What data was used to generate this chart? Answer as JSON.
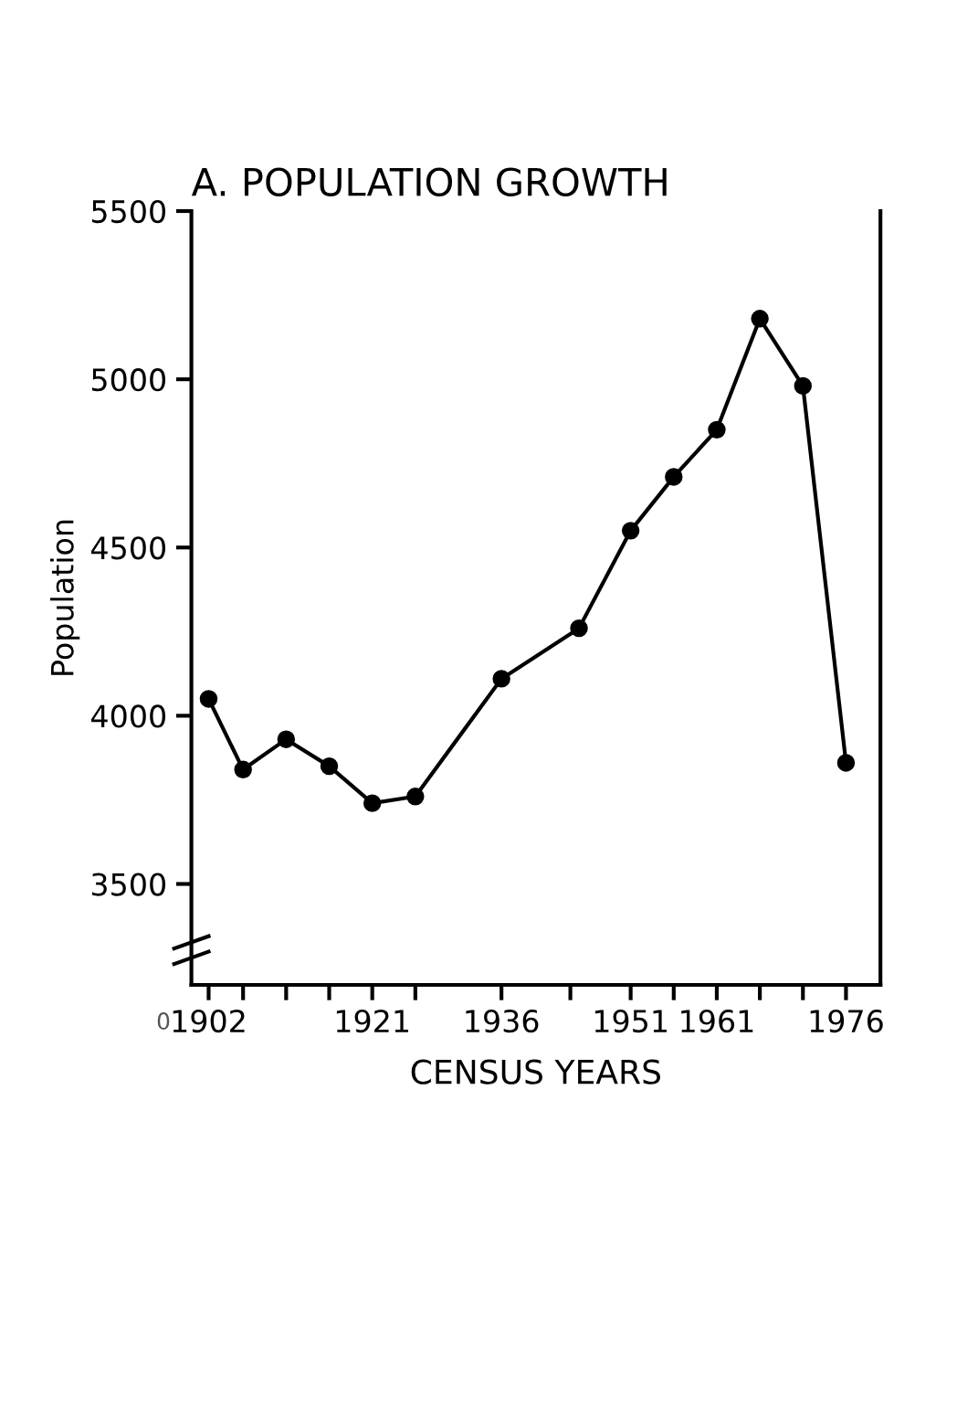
{
  "chart_data": {
    "type": "line",
    "title": "A. POPULATION GROWTH",
    "xlabel": "CENSUS YEARS",
    "ylabel": "Population",
    "x": [
      1902,
      1906,
      1911,
      1916,
      1921,
      1926,
      1936,
      1945,
      1951,
      1956,
      1961,
      1966,
      1971,
      1976
    ],
    "series": [
      {
        "color": "#000000",
        "values": [
          4050,
          3840,
          3930,
          3850,
          3740,
          3760,
          4110,
          4260,
          4550,
          4710,
          4850,
          5180,
          4980,
          3860
        ]
      }
    ],
    "xlim": [
      1900,
      1980
    ],
    "xticks": [
      1902,
      {
        "value": 1906,
        "label": null
      },
      {
        "value": 1911,
        "label": null
      },
      {
        "value": 1916,
        "label": null
      },
      1921,
      {
        "value": 1926,
        "label": null
      },
      1936,
      {
        "value": 1944,
        "label": null
      },
      1951,
      {
        "value": 1956,
        "label": null
      },
      1961,
      {
        "value": 1966,
        "label": null
      },
      {
        "value": 1971,
        "label": null
      },
      1976
    ],
    "ylim": [
      3200,
      5500
    ],
    "yticks": [
      3500,
      4000,
      4500,
      5000,
      5500
    ],
    "annotations": [
      "0"
    ],
    "marker": "circle",
    "line_style": "solid",
    "grid": false,
    "legend": false
  }
}
